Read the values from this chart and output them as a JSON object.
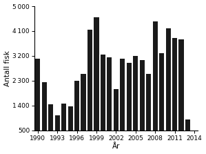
{
  "years": [
    1990,
    1991,
    1992,
    1993,
    1994,
    1995,
    1996,
    1997,
    1998,
    1999,
    2000,
    2001,
    2002,
    2003,
    2004,
    2005,
    2006,
    2007,
    2008,
    2009,
    2010,
    2011,
    2012,
    2013
  ],
  "values": [
    3100,
    2250,
    1450,
    1050,
    1480,
    1380,
    2300,
    2550,
    4150,
    4600,
    3250,
    3150,
    2000,
    3100,
    2950,
    3200,
    3050,
    2550,
    4450,
    3300,
    4200,
    3850,
    3800,
    900
  ],
  "bar_color": "#1a1a1a",
  "xlabel": "År",
  "ylabel": "Antall fisk",
  "ylim": [
    500,
    5000
  ],
  "yticks": [
    500,
    1400,
    2300,
    3200,
    4100,
    5000
  ],
  "xticks": [
    1990,
    1993,
    1996,
    1999,
    2002,
    2005,
    2008,
    2011,
    2014
  ],
  "xlim_left": 1989.5,
  "xlim_right": 2014.5,
  "bar_width": 0.75,
  "figsize": [
    2.99,
    2.23
  ],
  "dpi": 100,
  "tick_fontsize": 6.5,
  "label_fontsize": 7.5
}
